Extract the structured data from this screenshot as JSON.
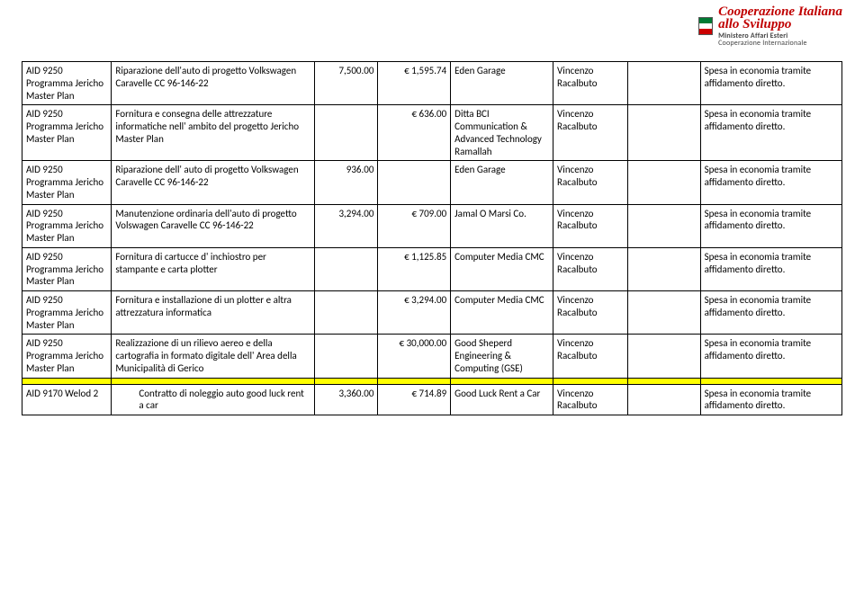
{
  "logo": {
    "line1": "Cooperazione Italiana",
    "line2": "allo Sviluppo",
    "sub1": "Ministero Affari Esteri",
    "sub2": "Cooperazione Internazionale"
  },
  "columns": [
    "project",
    "description",
    "amount1",
    "amount2",
    "vendor",
    "person",
    "blank",
    "note"
  ],
  "col_align": [
    "left",
    "left",
    "right",
    "right",
    "left",
    "left",
    "left",
    "left"
  ],
  "rows": [
    {
      "project": "AID 9250 Programma Jericho Master Plan",
      "description": "Riparazione dell'auto di progetto Volkswagen Caravelle CC 96-146-22",
      "amount1": "7,500.00",
      "amount2": "€ 1,595.74",
      "vendor": "Eden Garage",
      "person": "Vincenzo Racalbuto",
      "blank": "",
      "note": "Spesa in economia tramite affidamento diretto."
    },
    {
      "project": "AID 9250 Programma Jericho Master Plan",
      "description": "Fornitura e consegna delle attrezzature informatiche nell' ambito del progetto Jericho Master Plan",
      "amount1": "",
      "amount2": "€ 636.00",
      "vendor": "Ditta BCI Communication & Advanced Technology Ramallah",
      "person": "Vincenzo Racalbuto",
      "blank": "",
      "note": "Spesa in economia tramite affidamento diretto."
    },
    {
      "project": "AID 9250 Programma Jericho Master Plan",
      "description": "Riparazione dell' auto di progetto Volkswagen Caravelle CC 96-146-22",
      "amount1": "936.00",
      "amount2": "",
      "vendor": "Eden Garage",
      "person": "Vincenzo Racalbuto",
      "blank": "",
      "note": "Spesa in economia tramite affidamento diretto."
    },
    {
      "project": "AID 9250 Programma Jericho Master Plan",
      "description": "Manutenzione ordinaria dell'auto di progetto Volswagen Caravelle CC 96-146-22",
      "amount1": "3,294.00",
      "amount2": "€ 709.00",
      "vendor": "Jamal O Marsi Co.",
      "person": "Vincenzo Racalbuto",
      "blank": "",
      "note": "Spesa in economia tramite affidamento diretto."
    },
    {
      "project": "AID 9250 Programma Jericho Master Plan",
      "description": "Fornitura di cartucce d' inchiostro per stampante e carta plotter",
      "amount1": "",
      "amount2": "€ 1,125.85",
      "vendor": "Computer Media CMC",
      "person": "Vincenzo Racalbuto",
      "blank": "",
      "note": "Spesa in economia tramite affidamento diretto."
    },
    {
      "project": "AID 9250 Programma Jericho Master Plan",
      "description": "Fornitura e installazione di un plotter e altra attrezzatura informatica",
      "amount1": "",
      "amount2": "€ 3,294.00",
      "vendor": "Computer Media CMC",
      "person": "Vincenzo Racalbuto",
      "blank": "",
      "note": "Spesa in economia tramite affidamento diretto."
    },
    {
      "project": "AID 9250 Programma Jericho Master Plan",
      "description": "Realizzazione di un rilievo aereo e della cartografia in formato digitale dell' Area della Municipalità di Gerico",
      "amount1": "",
      "amount2": "€ 30,000.00",
      "vendor": "Good Sheperd Engineering & Computing (GSE)",
      "person": "Vincenzo Racalbuto",
      "blank": "",
      "note": "Spesa in economia tramite affidamento diretto."
    }
  ],
  "footer_row": {
    "project": "AID 9170 Welod 2",
    "description": "Contratto di noleggio auto good luck rent a car",
    "amount1": "3,360.00",
    "amount2": "€ 714.89",
    "vendor": "Good Luck Rent a Car",
    "person": "Vincenzo Racalbuto",
    "blank": "",
    "note": "Spesa in economia tramite affidamento diretto."
  }
}
